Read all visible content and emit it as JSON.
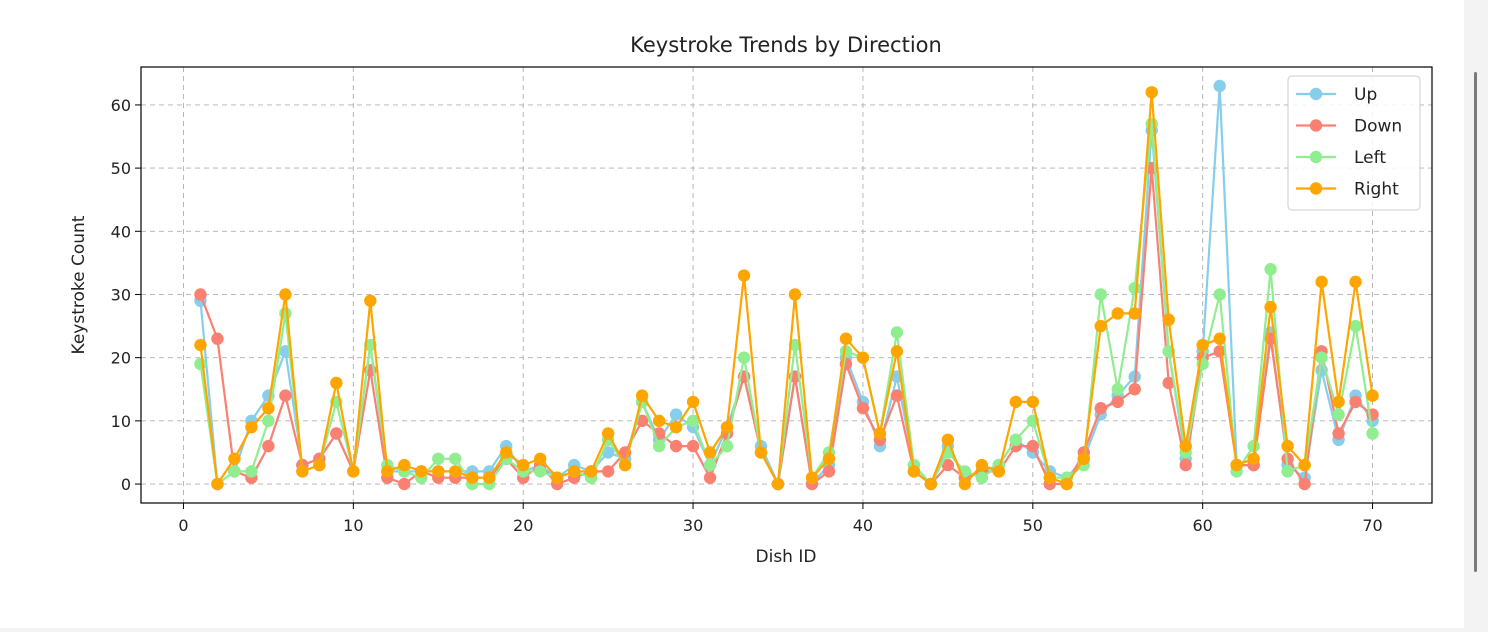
{
  "chart_data": {
    "type": "line",
    "title": "Keystroke Trends by Direction",
    "xlabel": "Dish ID",
    "ylabel": "Keystroke Count",
    "xlim": [
      -2.5,
      73.5
    ],
    "ylim": [
      -3,
      66
    ],
    "xticks": [
      0,
      10,
      20,
      30,
      40,
      50,
      60,
      70
    ],
    "yticks": [
      0,
      10,
      20,
      30,
      40,
      50,
      60
    ],
    "grid": true,
    "legend_position": "top-right",
    "x": [
      1,
      2,
      3,
      4,
      5,
      6,
      7,
      8,
      9,
      10,
      11,
      12,
      13,
      14,
      15,
      16,
      17,
      18,
      19,
      20,
      21,
      22,
      23,
      24,
      25,
      26,
      27,
      28,
      29,
      30,
      31,
      32,
      33,
      34,
      35,
      36,
      37,
      38,
      39,
      40,
      41,
      42,
      43,
      44,
      45,
      46,
      47,
      48,
      49,
      50,
      51,
      52,
      53,
      54,
      55,
      56,
      57,
      58,
      59,
      60,
      61,
      62,
      63,
      64,
      65,
      66,
      67,
      68,
      69,
      70
    ],
    "series": [
      {
        "name": "Up",
        "color": "#87ceeb",
        "values": [
          29,
          0,
          2,
          10,
          14,
          21,
          3,
          4,
          8,
          2,
          22,
          2,
          2,
          2,
          2,
          2,
          2,
          2,
          6,
          2,
          3,
          1,
          3,
          2,
          5,
          4,
          13,
          7,
          11,
          9,
          3,
          9,
          17,
          6,
          0,
          17,
          0,
          3,
          20,
          13,
          6,
          17,
          3,
          0,
          6,
          1,
          2,
          3,
          7,
          5,
          2,
          1,
          4,
          11,
          14,
          17,
          56,
          21,
          4,
          21,
          63,
          3,
          3,
          24,
          3,
          1,
          18,
          7,
          14,
          10
        ]
      },
      {
        "name": "Down",
        "color": "#fa8072",
        "values": [
          30,
          23,
          2,
          1,
          6,
          14,
          3,
          4,
          8,
          2,
          18,
          1,
          0,
          2,
          1,
          1,
          1,
          1,
          4,
          1,
          3,
          0,
          1,
          2,
          2,
          5,
          10,
          8,
          6,
          6,
          1,
          8,
          17,
          5,
          0,
          17,
          0,
          2,
          19,
          12,
          7,
          14,
          2,
          0,
          3,
          1,
          2,
          2,
          6,
          6,
          0,
          0,
          5,
          12,
          13,
          15,
          50,
          16,
          3,
          20,
          21,
          3,
          3,
          23,
          4,
          0,
          21,
          8,
          13,
          11
        ]
      },
      {
        "name": "Left",
        "color": "#90ee90",
        "values": [
          19,
          0,
          2,
          2,
          10,
          27,
          2,
          3,
          13,
          2,
          22,
          3,
          2,
          1,
          4,
          4,
          0,
          0,
          4,
          2,
          2,
          1,
          2,
          1,
          7,
          3,
          13,
          6,
          9,
          10,
          3,
          6,
          20,
          5,
          0,
          22,
          1,
          5,
          21,
          20,
          8,
          24,
          3,
          0,
          5,
          2,
          1,
          3,
          7,
          10,
          1,
          1,
          3,
          30,
          15,
          31,
          57,
          21,
          5,
          19,
          30,
          2,
          6,
          34,
          2,
          3,
          20,
          11,
          25,
          8
        ]
      },
      {
        "name": "Right",
        "color": "#ffa500",
        "values": [
          22,
          0,
          4,
          9,
          12,
          30,
          2,
          3,
          16,
          2,
          29,
          2,
          3,
          2,
          2,
          2,
          1,
          1,
          5,
          3,
          4,
          1,
          2,
          2,
          8,
          3,
          14,
          10,
          9,
          13,
          5,
          9,
          33,
          5,
          0,
          30,
          1,
          4,
          23,
          20,
          8,
          21,
          2,
          0,
          7,
          0,
          3,
          2,
          13,
          13,
          1,
          0,
          4,
          25,
          27,
          27,
          62,
          26,
          6,
          22,
          23,
          3,
          4,
          28,
          6,
          3,
          32,
          13,
          32,
          14
        ]
      }
    ]
  }
}
